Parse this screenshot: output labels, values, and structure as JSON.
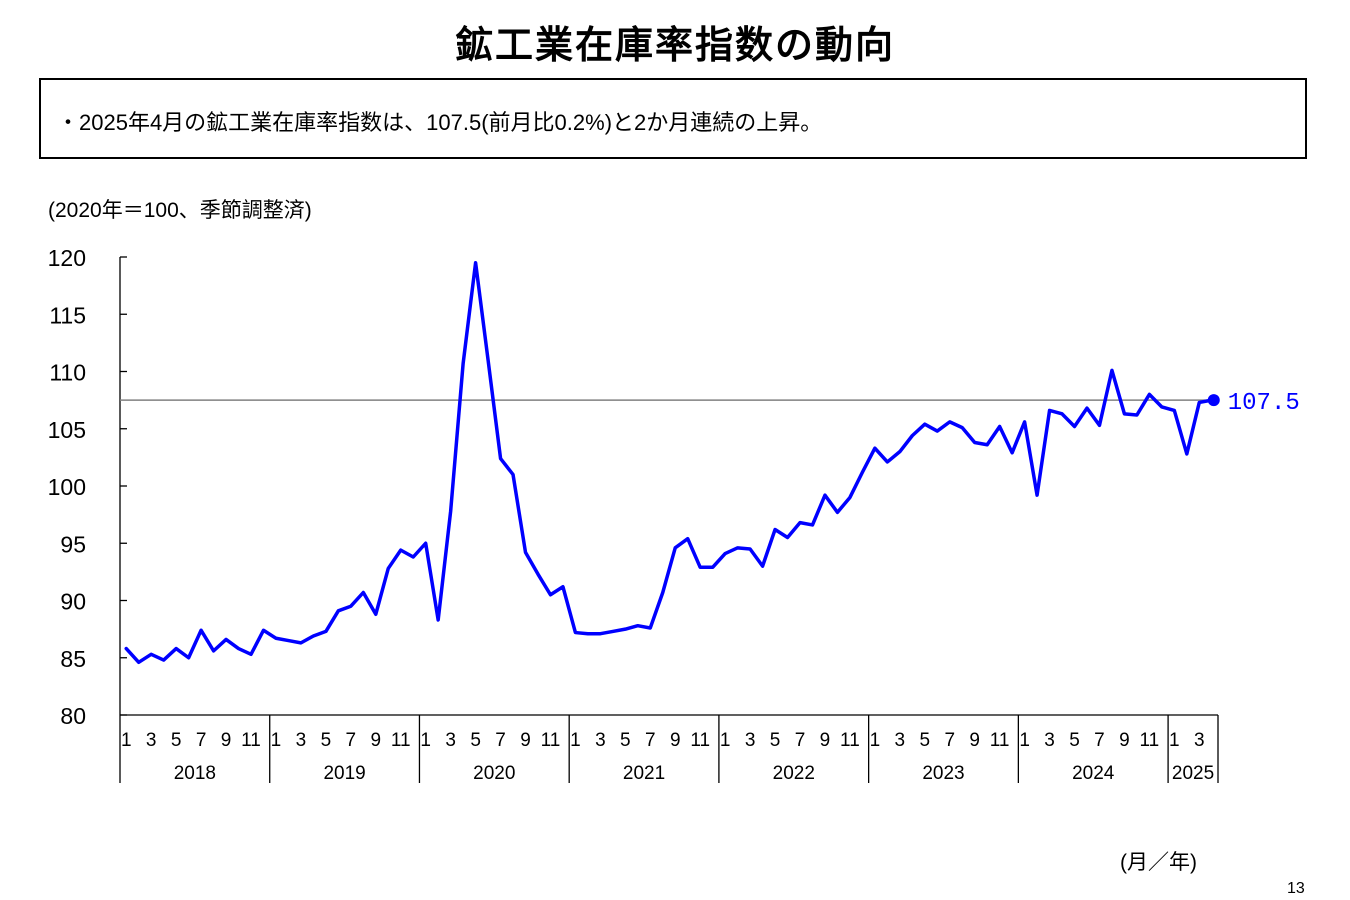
{
  "title": "鉱工業在庫率指数の動向",
  "summary": "・2025年4月の鉱工業在庫率指数は、107.5(前月比0.2%)と2か月連続の上昇。",
  "unit_note": "(2020年＝100、季節調整済)",
  "axis_unit": "(月／年)",
  "page_number": "13",
  "colors": {
    "line": "#0000ff",
    "reference": "#808080",
    "axis": "#000000"
  },
  "chart_data": {
    "type": "line",
    "title": "鉱工業在庫率指数の動向",
    "ylim": [
      80,
      120
    ],
    "yticks": [
      80,
      85,
      90,
      95,
      100,
      105,
      110,
      115,
      120
    ],
    "month_tick_labels": [
      "1",
      "3",
      "5",
      "7",
      "9",
      "11"
    ],
    "years": [
      "2018",
      "2019",
      "2020",
      "2021",
      "2022",
      "2023",
      "2024",
      "2025"
    ],
    "latest_label": "107.5",
    "reference_line_value": 107.5,
    "series": [
      {
        "name": "鉱工業在庫率指数",
        "start": "2018-01",
        "values": [
          85.8,
          84.6,
          85.3,
          84.8,
          85.8,
          85.0,
          87.4,
          85.6,
          86.6,
          85.8,
          85.3,
          87.4,
          86.7,
          86.5,
          86.3,
          86.9,
          87.3,
          89.1,
          89.5,
          90.7,
          88.8,
          92.8,
          94.4,
          93.8,
          95.0,
          88.3,
          97.8,
          110.7,
          119.5,
          111.0,
          102.4,
          101.0,
          94.2,
          92.3,
          90.5,
          91.2,
          87.2,
          87.1,
          87.1,
          87.3,
          87.5,
          87.8,
          87.6,
          90.7,
          94.6,
          95.4,
          92.9,
          92.9,
          94.1,
          94.6,
          94.5,
          93.0,
          96.2,
          95.5,
          96.8,
          96.6,
          99.2,
          97.7,
          99.0,
          101.2,
          103.3,
          102.1,
          103.0,
          104.4,
          105.4,
          104.8,
          105.6,
          105.1,
          103.8,
          103.6,
          105.2,
          102.9,
          105.6,
          99.2,
          106.6,
          106.3,
          105.2,
          106.8,
          105.3,
          110.1,
          106.3,
          106.2,
          108.0,
          106.9,
          106.6,
          102.8,
          107.3,
          107.5
        ]
      }
    ]
  }
}
